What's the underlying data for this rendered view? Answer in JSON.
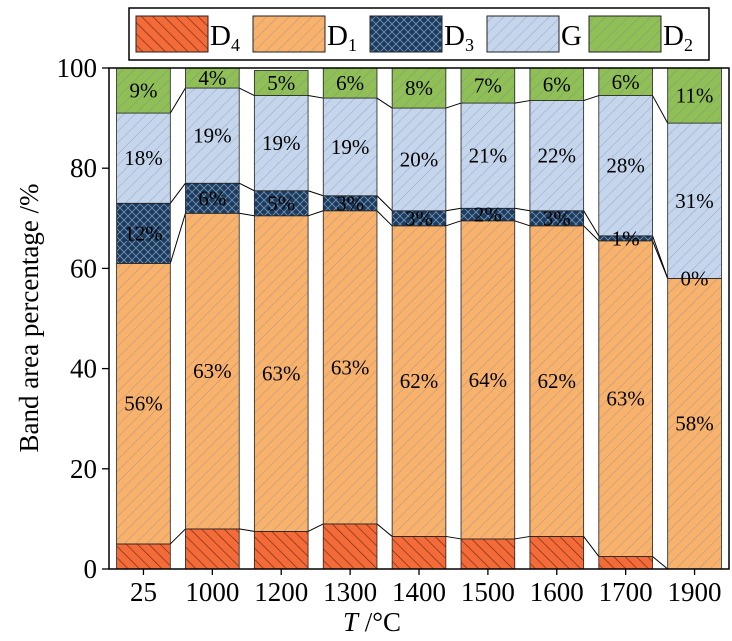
{
  "chart_data": {
    "type": "bar",
    "stacked": true,
    "categories": [
      "25",
      "1000",
      "1200",
      "1300",
      "1400",
      "1500",
      "1600",
      "1700",
      "1900"
    ],
    "series": [
      {
        "name": "D",
        "sub": "4",
        "color": "#f46b3a",
        "hatch": "dense-diag",
        "values": [
          5,
          8,
          7.5,
          9,
          6.5,
          6,
          6.5,
          2.5,
          0
        ]
      },
      {
        "name": "D",
        "sub": "1",
        "color": "#f9b26b",
        "hatch": "sparse-diag",
        "values": [
          56,
          63,
          63,
          62.5,
          62,
          63.5,
          62,
          63,
          58
        ],
        "labels": [
          "56%",
          "63%",
          "63%",
          "63%",
          "62%",
          "64%",
          "62%",
          "63%",
          "58%"
        ]
      },
      {
        "name": "D",
        "sub": "3",
        "color": "#1d3c5c",
        "hatch": "cross",
        "values": [
          12,
          6,
          5,
          3,
          3,
          2.5,
          3,
          1,
          0
        ],
        "labels": [
          "12%",
          "6%",
          "5%",
          "3%",
          "3%",
          "2%",
          "3%",
          "1%",
          "0%"
        ]
      },
      {
        "name": "G",
        "sub": "",
        "color": "#c5d6ec",
        "hatch": "sparse-diag",
        "values": [
          18,
          19,
          19,
          19.5,
          20.5,
          21,
          22,
          28,
          31
        ],
        "labels": [
          "18%",
          "19%",
          "19%",
          "19%",
          "20%",
          "21%",
          "22%",
          "28%",
          "31%"
        ]
      },
      {
        "name": "D",
        "sub": "2",
        "color": "#8fbf55",
        "hatch": "sparse-diag",
        "values": [
          9,
          4,
          5,
          6,
          8,
          7,
          6.5,
          5.5,
          11
        ],
        "labels": [
          "9%",
          "4%",
          "5%",
          "6%",
          "8%",
          "7%",
          "6%",
          "6%",
          "11%"
        ]
      }
    ],
    "xlabel": "T /°C",
    "ylabel": "Band area percentage /%",
    "ylim": [
      0,
      100
    ],
    "yticks": [
      "0",
      "20",
      "40",
      "60",
      "80",
      "100"
    ],
    "legend_position": "top",
    "grid": false
  }
}
